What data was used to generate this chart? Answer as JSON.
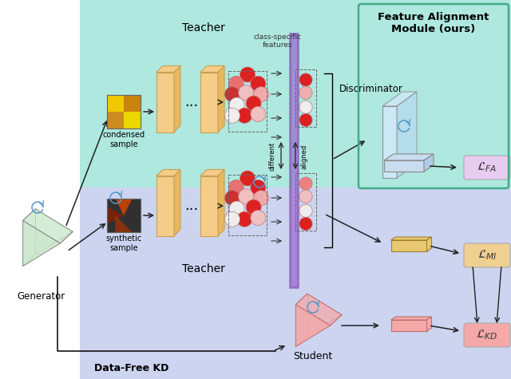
{
  "bg_top_color": "#aee8df",
  "bg_bottom_color": "#ccd4f0",
  "bg_white_color": "#ffffff",
  "title_fa": "Feature Alignment\nModule (ours)",
  "title_teacher_top": "Teacher",
  "title_teacher_bot": "Teacher",
  "title_generator": "Generator",
  "title_student": "Student",
  "title_discriminator": "Discriminator",
  "title_datafree": "Data-Free KD",
  "label_condensed": "condensed\nsample",
  "label_synthetic": "synthetic\nsample",
  "label_class_specific": "class-specific\nfeatures",
  "label_aligned": "aligned",
  "label_different": "different",
  "label_lfa": "$\\mathcal{L}_{FA}$",
  "label_lmi": "$\\mathcal{L}_{MI}$",
  "label_lkd": "$\\mathcal{L}_{KD}$",
  "orange_layer_color": "#f5cc88",
  "orange_layer_edge": "#c8a050",
  "orange_layer_dark": "#e8b860",
  "generator_color": "#c8e6c9",
  "generator_edge": "#999999",
  "discriminator_color": "#d0e8f8",
  "student_color": "#f4a8a8",
  "loss_fa_color": "#e8ccf0",
  "loss_mi_color": "#e8c870",
  "loss_kd_color": "#f4a8a8",
  "purple_plane_color": "#8855bb",
  "refresh_color": "#5599cc",
  "arrow_color": "#222222",
  "border_color": "#44aa88"
}
